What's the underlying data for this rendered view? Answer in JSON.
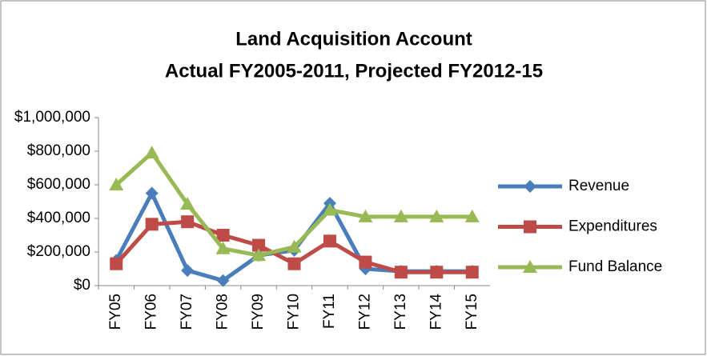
{
  "chart_data": {
    "type": "line",
    "title": "Land Acquisition Account",
    "subtitle": "Actual FY2005-2011, Projected FY2012-15",
    "categories": [
      "FY05",
      "FY06",
      "FY07",
      "FY08",
      "FY09",
      "FY10",
      "FY11",
      "FY12",
      "FY13",
      "FY14",
      "FY15"
    ],
    "series": [
      {
        "name": "Revenue",
        "color": "#4a7ebb",
        "marker": "diamond",
        "values": [
          150000,
          550000,
          90000,
          30000,
          180000,
          210000,
          490000,
          100000,
          85000,
          85000,
          85000
        ]
      },
      {
        "name": "Expenditures",
        "color": "#be4b48",
        "marker": "square",
        "values": [
          130000,
          365000,
          380000,
          300000,
          240000,
          130000,
          265000,
          140000,
          80000,
          80000,
          80000
        ]
      },
      {
        "name": "Fund Balance",
        "color": "#98b954",
        "marker": "triangle",
        "values": [
          600000,
          790000,
          485000,
          220000,
          180000,
          230000,
          450000,
          410000,
          410000,
          410000,
          410000
        ]
      }
    ],
    "ylim": [
      0,
      1000000
    ],
    "yticks": [
      {
        "value": 0,
        "label": "$0"
      },
      {
        "value": 200000,
        "label": "$200,000"
      },
      {
        "value": 400000,
        "label": "$400,000"
      },
      {
        "value": 600000,
        "label": "$600,000"
      },
      {
        "value": 800000,
        "label": "$800,000"
      },
      {
        "value": 1000000,
        "label": "$1,000,000"
      }
    ],
    "grid": false,
    "legend": "right"
  }
}
